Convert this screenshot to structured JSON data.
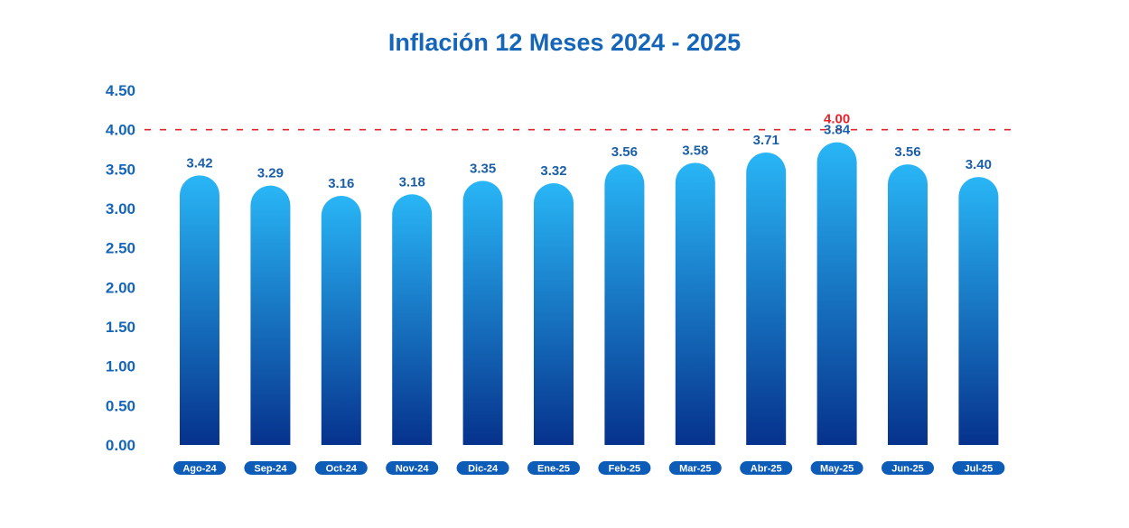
{
  "chart_data": {
    "type": "bar",
    "title": "Inflación 12 Meses 2024 - 2025",
    "categories": [
      "Ago-24",
      "Sep-24",
      "Oct-24",
      "Nov-24",
      "Dic-24",
      "Ene-25",
      "Feb-25",
      "Mar-25",
      "Abr-25",
      "May-25",
      "Jun-25",
      "Jul-25"
    ],
    "values": [
      3.42,
      3.29,
      3.16,
      3.18,
      3.35,
      3.32,
      3.56,
      3.58,
      3.71,
      3.84,
      3.56,
      3.4
    ],
    "value_labels": [
      "3.42",
      "3.29",
      "3.16",
      "3.18",
      "3.35",
      "3.32",
      "3.56",
      "3.58",
      "3.71",
      "3.84",
      "3.56",
      "3.40"
    ],
    "yticks": [
      "0.00",
      "0.50",
      "1.00",
      "1.50",
      "2.00",
      "2.50",
      "3.00",
      "3.50",
      "4.00",
      "4.50"
    ],
    "ylim": [
      0,
      4.5
    ],
    "reference_line": {
      "value": 4.0,
      "label": "4.00",
      "color": "#e3242b"
    },
    "colors": {
      "title": "#1565b8",
      "axis_text": "#1565b8",
      "value_label": "#1a5fa8",
      "bar_top": "#29b6f6",
      "bar_bottom": "#06328c",
      "pill": "#0d5cb8",
      "pill_text": "#ffffff",
      "baseline": "#1e62c4"
    }
  }
}
